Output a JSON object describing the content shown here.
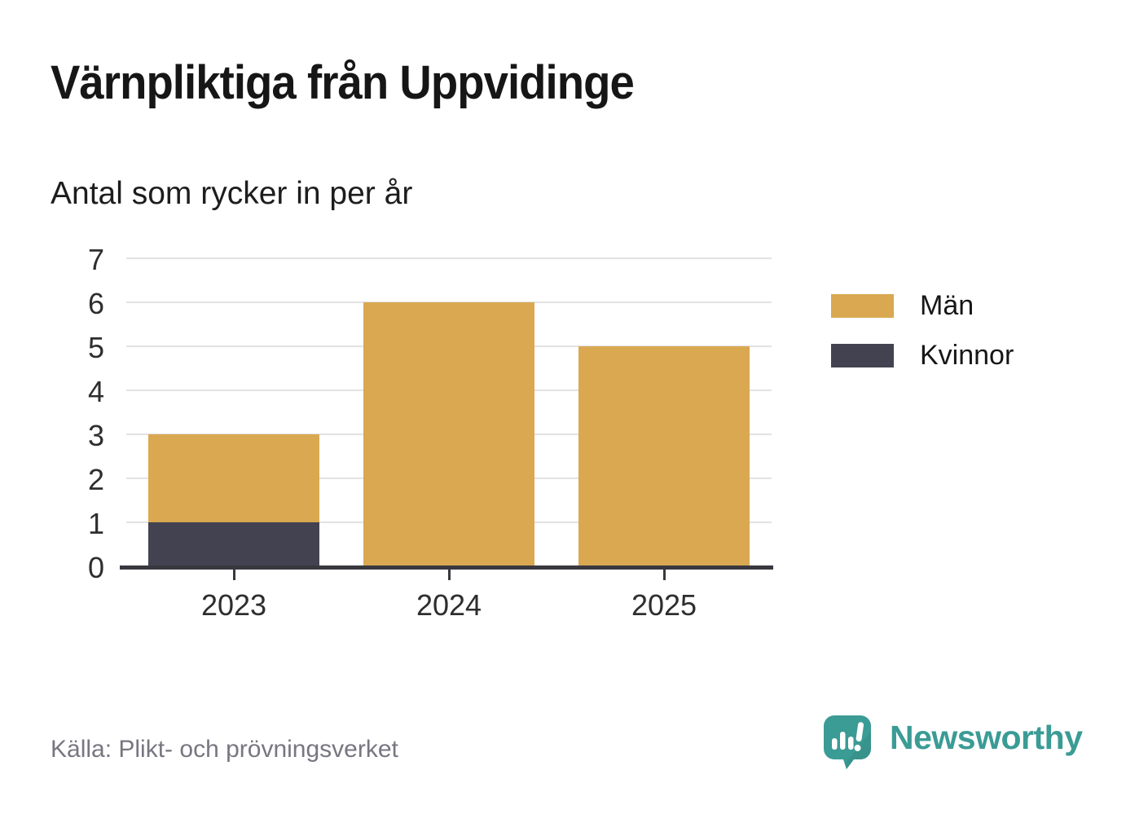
{
  "header": {
    "title": "Värnpliktiga från Uppvidinge",
    "subtitle": "Antal som rycker in per år"
  },
  "footer": {
    "source": "Källa: Plikt- och prövningsverket",
    "brand_name": "Newsworthy"
  },
  "icons": {
    "brand_logo": "speech-bubble-bar-chart-icon"
  },
  "colors": {
    "men": "#d9a851",
    "women": "#434250",
    "axis": "#39383f",
    "grid": "#e2e2e2",
    "tick_text": "#2e2e2e",
    "title_text": "#161616",
    "source_text": "#787680",
    "brand_teal": "#3b9b95",
    "background": "#ffffff"
  },
  "chart_data": {
    "type": "bar",
    "stacked": true,
    "title": "Värnpliktiga från Uppvidinge",
    "subtitle": "Antal som rycker in per år",
    "xlabel": "",
    "ylabel": "",
    "categories": [
      "2023",
      "2024",
      "2025"
    ],
    "series": [
      {
        "name": "Män",
        "color": "#d9a851",
        "values": [
          2,
          6,
          5
        ]
      },
      {
        "name": "Kvinnor",
        "color": "#434250",
        "values": [
          1,
          0,
          0
        ]
      }
    ],
    "totals": [
      3,
      6,
      5
    ],
    "stack_bottom_to_top": [
      "Kvinnor",
      "Män"
    ],
    "ylim": [
      0,
      7
    ],
    "yticks": [
      0,
      1,
      2,
      3,
      4,
      5,
      6,
      7
    ],
    "grid": true,
    "legend_position": "right",
    "source": "Källa: Plikt- och prövningsverket"
  }
}
